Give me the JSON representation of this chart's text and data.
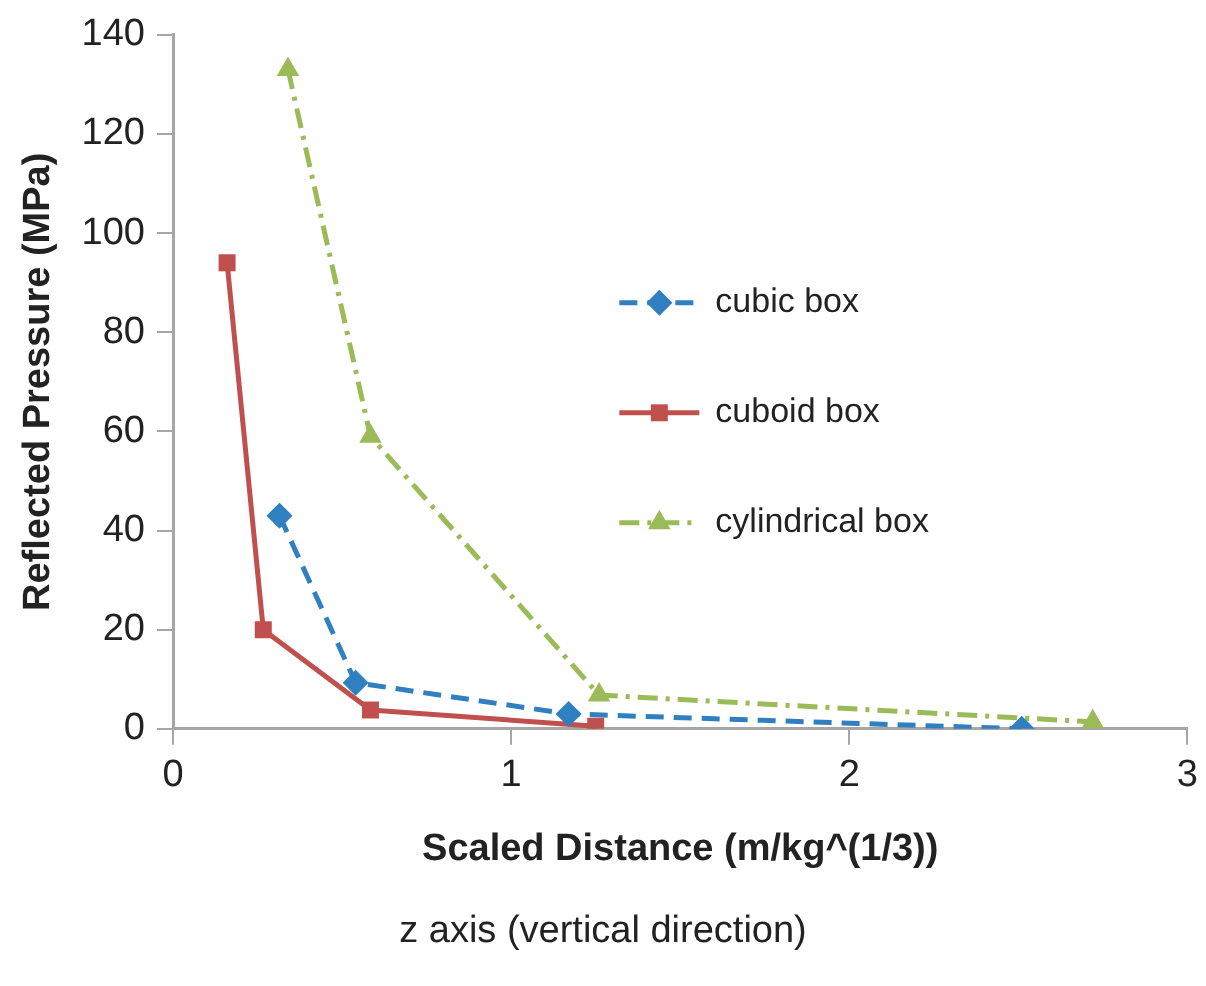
{
  "chart_data": {
    "type": "line",
    "xlabel": "Scaled Distance (m/kg^(1/3))",
    "ylabel": "Reflected Pressure (MPa)",
    "annotations": [
      "z axis (vertical direction)"
    ],
    "xlim": [
      0,
      3
    ],
    "xticks": [
      0,
      1,
      2,
      3
    ],
    "ylim": [
      0,
      140
    ],
    "yticks": [
      0,
      20,
      40,
      60,
      80,
      100,
      120,
      140
    ],
    "grid": false,
    "legend": "right",
    "series": [
      {
        "name": "cubic box",
        "color": "#2f7fc1",
        "marker": "diamond",
        "line_style": "dashed",
        "x": [
          0.315,
          0.54,
          1.17,
          2.51
        ],
        "values": [
          43,
          9.3,
          3,
          0
        ]
      },
      {
        "name": "cuboid box",
        "color": "#c0504d",
        "marker": "square",
        "line_style": "solid",
        "x": [
          0.16,
          0.267,
          0.584,
          1.25
        ],
        "values": [
          94,
          20,
          3.8,
          0.5
        ]
      },
      {
        "name": "cylindrical box",
        "color": "#9bbb59",
        "marker": "triangle",
        "line_style": "dashdot",
        "x": [
          0.34,
          0.584,
          1.26,
          2.72
        ],
        "values": [
          133,
          59,
          6.8,
          1.4
        ]
      }
    ]
  }
}
